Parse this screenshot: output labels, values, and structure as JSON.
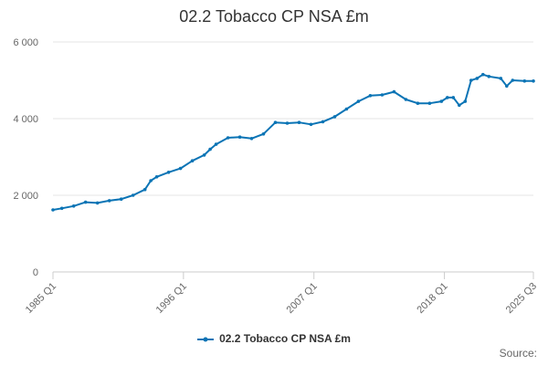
{
  "chart_data": {
    "type": "line",
    "title": "02.2 Tobacco CP NSA £m",
    "xlabel": "",
    "ylabel": "",
    "ylim": [
      0,
      6000
    ],
    "yticks": [
      0,
      2000,
      4000,
      6000
    ],
    "ytick_labels": [
      "0",
      "2 000",
      "4 000",
      "6 000"
    ],
    "xtick_labels": [
      "1985 Q1",
      "1996 Q1",
      "2007 Q1",
      "2018 Q1",
      "2025 Q3"
    ],
    "grid": true,
    "legend_position": "bottom-center",
    "color": "#0b74b5",
    "series": [
      {
        "name": "02.2 Tobacco CP NSA £m",
        "points": [
          [
            "1985 Q1",
            1620
          ],
          [
            "1985 Q4",
            1660
          ],
          [
            "1986 Q4",
            1720
          ],
          [
            "1987 Q4",
            1820
          ],
          [
            "1988 Q4",
            1800
          ],
          [
            "1989 Q4",
            1860
          ],
          [
            "1990 Q4",
            1900
          ],
          [
            "1991 Q4",
            2000
          ],
          [
            "1992 Q4",
            2150
          ],
          [
            "1993 Q2",
            2380
          ],
          [
            "1993 Q4",
            2480
          ],
          [
            "1994 Q4",
            2600
          ],
          [
            "1995 Q4",
            2700
          ],
          [
            "1996 Q4",
            2900
          ],
          [
            "1997 Q4",
            3050
          ],
          [
            "1998 Q2",
            3200
          ],
          [
            "1998 Q4",
            3330
          ],
          [
            "1999 Q4",
            3500
          ],
          [
            "2000 Q4",
            3520
          ],
          [
            "2001 Q4",
            3480
          ],
          [
            "2002 Q4",
            3600
          ],
          [
            "2003 Q4",
            3900
          ],
          [
            "2004 Q4",
            3880
          ],
          [
            "2005 Q4",
            3900
          ],
          [
            "2006 Q4",
            3850
          ],
          [
            "2007 Q4",
            3920
          ],
          [
            "2008 Q4",
            4050
          ],
          [
            "2009 Q4",
            4250
          ],
          [
            "2010 Q4",
            4450
          ],
          [
            "2011 Q4",
            4600
          ],
          [
            "2012 Q4",
            4620
          ],
          [
            "2013 Q4",
            4700
          ],
          [
            "2014 Q4",
            4500
          ],
          [
            "2015 Q4",
            4400
          ],
          [
            "2016 Q4",
            4400
          ],
          [
            "2017 Q4",
            4450
          ],
          [
            "2018 Q2",
            4550
          ],
          [
            "2018 Q4",
            4550
          ],
          [
            "2019 Q2",
            4350
          ],
          [
            "2019 Q4",
            4450
          ],
          [
            "2020 Q2",
            5000
          ],
          [
            "2020 Q4",
            5050
          ],
          [
            "2021 Q2",
            5150
          ],
          [
            "2021 Q4",
            5100
          ],
          [
            "2022 Q4",
            5050
          ],
          [
            "2023 Q2",
            4850
          ],
          [
            "2023 Q4",
            5000
          ],
          [
            "2024 Q4",
            4980
          ],
          [
            "2025 Q3",
            4980
          ]
        ]
      }
    ]
  },
  "legend": {
    "label": "02.2 Tobacco CP NSA £m"
  },
  "footer": {
    "source": "Source:"
  }
}
